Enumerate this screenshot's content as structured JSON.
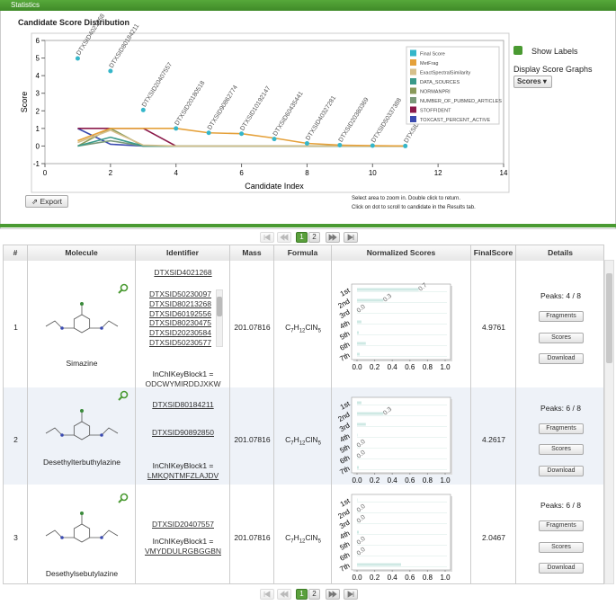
{
  "panel": {
    "title": "Statistics"
  },
  "chart_data": {
    "type": "line",
    "title": "Candidate Score Distribution",
    "x_label": "Candidate Index",
    "y_label": "Score",
    "xlim": [
      0,
      14
    ],
    "ylim": [
      -1,
      6
    ],
    "xticks": [
      0,
      2,
      4,
      6,
      8,
      10,
      12,
      14
    ],
    "yticks": [
      -1,
      0,
      1,
      2,
      3,
      4,
      5,
      6
    ],
    "grid": false,
    "legend": "upper right",
    "x": [
      1,
      2,
      3,
      4,
      5,
      6,
      7,
      8,
      9,
      10,
      11
    ],
    "series": [
      {
        "name": "Final Score",
        "color": "#35b6c9",
        "mode": "markers",
        "values": [
          4.9761,
          4.2617,
          2.0467,
          1.0,
          0.75,
          0.7,
          0.4,
          0.15,
          0.05,
          0.02,
          0.0
        ],
        "labels": [
          "DTXSID4021268",
          "DTXSID80184211",
          "DTXSID20407557",
          "DTXSID20180518",
          "DTXSID90862774",
          "DTXSID10192147",
          "DTXSID60435441",
          "DTXSID40327281",
          "DTXSID20380369",
          "DTXSID50337388",
          "DTXSID30205802"
        ]
      },
      {
        "name": "MetFrag",
        "color": "#e5a13a",
        "values": [
          0.3,
          1.0,
          1.0,
          1.0,
          0.75,
          0.7,
          0.45,
          0.15,
          0.05,
          0.02,
          0.0
        ]
      },
      {
        "name": "ExactSpectralSimilarity",
        "color": "#d6c08c",
        "values": [
          0.2,
          0.9,
          0.05,
          0.0,
          0.0,
          0.0,
          0.0,
          0.0,
          0.0,
          0.0,
          0.0
        ]
      },
      {
        "name": "DATA_SOURCES",
        "color": "#3a9a8a",
        "values": [
          0.0,
          0.5,
          0.0,
          0.0,
          0.0,
          0.0,
          0.0,
          0.0,
          0.0,
          0.0,
          0.0
        ]
      },
      {
        "name": "NORMANPRI",
        "color": "#8a9a5a",
        "values": [
          0.0,
          1.0,
          0.0,
          0.0,
          0.0,
          0.0,
          0.0,
          0.0,
          0.0,
          0.0,
          0.0
        ]
      },
      {
        "name": "NUMBER_OF_PUBMED_ARTICLES",
        "color": "#7a9a7a",
        "values": [
          0.0,
          0.3,
          0.0,
          0.0,
          0.0,
          0.0,
          0.0,
          0.0,
          0.0,
          0.0,
          0.0
        ]
      },
      {
        "name": "STOFFIDENT",
        "color": "#8b1a4a",
        "values": [
          1.0,
          1.0,
          1.0,
          0.0,
          0.0,
          0.0,
          0.0,
          0.0,
          0.0,
          0.0,
          0.0
        ]
      },
      {
        "name": "TOXCAST_PERCENT_ACTIVE",
        "color": "#3a4ab0",
        "values": [
          1.0,
          0.1,
          0.0,
          0.0,
          0.0,
          0.0,
          0.0,
          0.0,
          0.0,
          0.0,
          0.0
        ]
      }
    ]
  },
  "controls": {
    "show_labels": "Show Labels",
    "display_graphs": "Display Score Graphs",
    "graph_select": "Scores",
    "export": "Export",
    "hint_zoom": "Select area to zoom in. Double click to return.",
    "hint_click": "Click on dot to scroll to candidate in the Results tab."
  },
  "pagination": {
    "pages": [
      1,
      2
    ]
  },
  "table": {
    "columns": [
      "#",
      "Molecule",
      "Identifier",
      "Mass",
      "Formula",
      "Normalized Scores",
      "FinalScore",
      "Details"
    ],
    "buttons": [
      "Fragments",
      "Scores",
      "Download"
    ],
    "inchi_label": "InChIKeyBlock1 =",
    "score_ranks": [
      "1st",
      "2nd",
      "3rd",
      "4th",
      "5th",
      "6th",
      "7th"
    ],
    "score_ticks": [
      {
        "value": 0,
        "label": "0.0"
      },
      0.2,
      0.4,
      0.6,
      0.8,
      {
        "value": 1,
        "label": "1.0"
      }
    ],
    "rows": [
      {
        "index": 1,
        "name": "Simazine",
        "identifier": "DTXSID4021268",
        "related": [
          "DTXSID50230097",
          "DTXSID80213268",
          "DTXSID60192556",
          "DTXSID80230475",
          "DTXSID20230584",
          "DTXSID50230577"
        ],
        "inchi": "ODCWYMIRDDJXKW",
        "mass": 201.07816,
        "formula": "C7H12ClN5",
        "final_score": 4.9761,
        "peaks": "Peaks: 4 / 8",
        "scores": [
          0.7,
          0.3,
          0.0,
          0.05,
          0.02,
          0.1,
          0.03
        ],
        "value_labels": [
          "0.7",
          "0.3",
          "0.0",
          null,
          null,
          null,
          null
        ]
      },
      {
        "index": 2,
        "name": "Desethylterbuthylazine",
        "identifier": "DTXSID80184211",
        "related": [
          "DTXSID90892850"
        ],
        "inchi": "LMKQNTMFZLAJDV",
        "mass": 201.07816,
        "formula": "C7H12ClN5",
        "final_score": 4.2617,
        "peaks": "Peaks: 6 / 8",
        "scores": [
          0.05,
          0.3,
          0.1,
          0.0,
          0.0,
          0.0,
          0.02
        ],
        "value_labels": [
          null,
          "0.3",
          null,
          null,
          "0.0",
          "0.0",
          null
        ]
      },
      {
        "index": 3,
        "name": "Desethylsebutylazine",
        "identifier": "DTXSID20407557",
        "related": [],
        "inchi": "VMYDDULRGBGGBN",
        "mass": 201.07816,
        "formula": "C7H12ClN5",
        "final_score": 2.0467,
        "peaks": "Peaks: 6 / 8",
        "scores": [
          0.0,
          0.0,
          0.0,
          0.02,
          0.0,
          0.0,
          0.5
        ],
        "value_labels": [
          null,
          "0.0",
          "0.0",
          null,
          "0.0",
          "0.0",
          null
        ]
      }
    ]
  }
}
